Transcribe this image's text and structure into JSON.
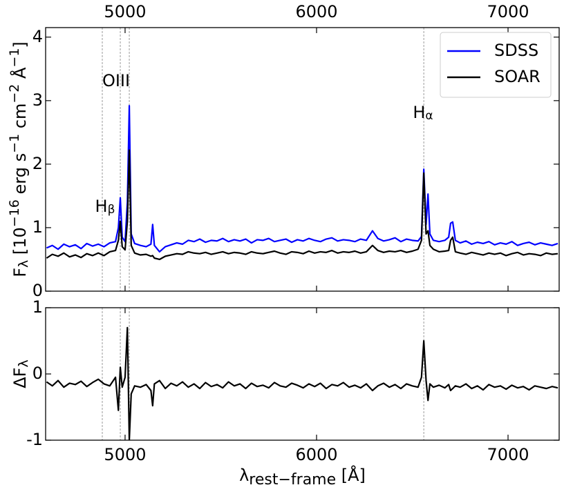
{
  "chart_data": [
    {
      "type": "line",
      "x": [
        4590,
        4620,
        4650,
        4680,
        4710,
        4740,
        4770,
        4800,
        4830,
        4860,
        4890,
        4920,
        4950,
        4965,
        4975,
        4985,
        5000,
        5012,
        5022,
        5032,
        5050,
        5080,
        5110,
        5135,
        5144,
        5153,
        5180,
        5210,
        5240,
        5270,
        5300,
        5330,
        5360,
        5390,
        5420,
        5450,
        5480,
        5510,
        5540,
        5570,
        5600,
        5630,
        5660,
        5690,
        5720,
        5750,
        5780,
        5810,
        5840,
        5870,
        5900,
        5930,
        5960,
        5990,
        6020,
        6050,
        6080,
        6110,
        6140,
        6170,
        6200,
        6230,
        6260,
        6292,
        6320,
        6350,
        6380,
        6410,
        6440,
        6470,
        6500,
        6530,
        6548,
        6560,
        6572,
        6582,
        6592,
        6610,
        6640,
        6670,
        6690,
        6700,
        6711,
        6725,
        6750,
        6780,
        6810,
        6840,
        6870,
        6900,
        6930,
        6960,
        6990,
        7020,
        7050,
        7080,
        7110,
        7140,
        7170,
        7200,
        7230,
        7260
      ],
      "series": [
        {
          "name": "SDSS",
          "color": "#0000ff",
          "values": [
            0.68,
            0.72,
            0.66,
            0.74,
            0.7,
            0.73,
            0.67,
            0.75,
            0.71,
            0.74,
            0.7,
            0.76,
            0.78,
            1.0,
            1.47,
            0.85,
            0.78,
            1.4,
            2.92,
            0.9,
            0.75,
            0.72,
            0.7,
            0.74,
            1.05,
            0.72,
            0.62,
            0.7,
            0.73,
            0.76,
            0.74,
            0.8,
            0.78,
            0.82,
            0.77,
            0.8,
            0.79,
            0.83,
            0.78,
            0.81,
            0.79,
            0.82,
            0.76,
            0.81,
            0.8,
            0.83,
            0.78,
            0.8,
            0.82,
            0.77,
            0.81,
            0.79,
            0.83,
            0.8,
            0.78,
            0.82,
            0.84,
            0.79,
            0.81,
            0.8,
            0.78,
            0.82,
            0.8,
            0.95,
            0.83,
            0.79,
            0.81,
            0.84,
            0.78,
            0.82,
            0.8,
            0.79,
            0.86,
            1.92,
            1.05,
            1.53,
            0.9,
            0.8,
            0.78,
            0.8,
            0.85,
            1.07,
            1.09,
            0.8,
            0.76,
            0.79,
            0.74,
            0.77,
            0.75,
            0.78,
            0.73,
            0.76,
            0.74,
            0.78,
            0.72,
            0.75,
            0.77,
            0.73,
            0.76,
            0.74,
            0.72,
            0.75
          ]
        },
        {
          "name": "SOAR",
          "color": "#000000",
          "values": [
            0.52,
            0.58,
            0.55,
            0.6,
            0.54,
            0.57,
            0.53,
            0.59,
            0.56,
            0.6,
            0.56,
            0.62,
            0.64,
            0.8,
            1.1,
            0.7,
            0.65,
            1.1,
            2.22,
            0.72,
            0.6,
            0.57,
            0.58,
            0.55,
            0.56,
            0.52,
            0.5,
            0.55,
            0.57,
            0.59,
            0.58,
            0.62,
            0.6,
            0.59,
            0.61,
            0.58,
            0.6,
            0.62,
            0.59,
            0.61,
            0.6,
            0.58,
            0.62,
            0.6,
            0.59,
            0.61,
            0.63,
            0.6,
            0.58,
            0.62,
            0.61,
            0.59,
            0.63,
            0.6,
            0.62,
            0.61,
            0.64,
            0.6,
            0.62,
            0.61,
            0.63,
            0.6,
            0.62,
            0.72,
            0.64,
            0.61,
            0.63,
            0.62,
            0.64,
            0.61,
            0.63,
            0.66,
            0.8,
            1.86,
            0.9,
            0.95,
            0.72,
            0.66,
            0.62,
            0.63,
            0.64,
            0.8,
            0.85,
            0.62,
            0.6,
            0.58,
            0.61,
            0.59,
            0.57,
            0.6,
            0.58,
            0.6,
            0.56,
            0.59,
            0.61,
            0.57,
            0.59,
            0.58,
            0.56,
            0.6,
            0.58,
            0.59
          ]
        }
      ],
      "xlim": [
        4585,
        7267
      ],
      "xticks": [
        5000,
        6000,
        7000
      ],
      "xtick_labels": "top",
      "ylim": [
        0,
        4.15
      ],
      "yticks": [
        0,
        1,
        2,
        3,
        4
      ],
      "ylabel": [
        {
          "text": "F"
        },
        {
          "text": "λ",
          "shift": "sub"
        },
        {
          "text": " [10"
        },
        {
          "text": "−16",
          "shift": "super"
        },
        {
          "text": " erg s"
        },
        {
          "text": "−1",
          "shift": "super"
        },
        {
          "text": " cm"
        },
        {
          "text": "−2",
          "shift": "super"
        },
        {
          "text": " Å"
        },
        {
          "text": "−1",
          "shift": "super"
        },
        {
          "text": "]"
        }
      ],
      "legend": "upper right",
      "vlines": [
        4881,
        4975,
        5022,
        6560
      ],
      "annotations": [
        [
          {
            "text": "H"
          },
          {
            "text": "β",
            "shift": "sub"
          }
        ],
        [
          {
            "text": "OIII"
          }
        ],
        [
          {
            "text": "H"
          },
          {
            "text": "α",
            "shift": "sub"
          }
        ]
      ]
    },
    {
      "type": "line",
      "x": [
        4590,
        4620,
        4650,
        4680,
        4710,
        4740,
        4770,
        4800,
        4830,
        4860,
        4890,
        4920,
        4950,
        4965,
        4975,
        4985,
        5000,
        5012,
        5022,
        5032,
        5050,
        5080,
        5110,
        5135,
        5144,
        5153,
        5180,
        5210,
        5240,
        5270,
        5300,
        5330,
        5360,
        5390,
        5420,
        5450,
        5480,
        5510,
        5540,
        5570,
        5600,
        5630,
        5660,
        5690,
        5720,
        5750,
        5780,
        5810,
        5840,
        5870,
        5900,
        5930,
        5960,
        5990,
        6020,
        6050,
        6080,
        6110,
        6140,
        6170,
        6200,
        6230,
        6260,
        6292,
        6320,
        6350,
        6380,
        6410,
        6440,
        6470,
        6500,
        6530,
        6548,
        6560,
        6572,
        6582,
        6592,
        6610,
        6640,
        6670,
        6690,
        6700,
        6711,
        6725,
        6750,
        6780,
        6810,
        6840,
        6870,
        6900,
        6930,
        6960,
        6990,
        7020,
        7050,
        7080,
        7110,
        7140,
        7170,
        7200,
        7230,
        7260
      ],
      "series": [
        {
          "color": "#000000",
          "values": [
            -0.12,
            -0.18,
            -0.1,
            -0.2,
            -0.14,
            -0.16,
            -0.11,
            -0.19,
            -0.13,
            -0.08,
            -0.15,
            -0.18,
            -0.05,
            -0.55,
            0.1,
            -0.2,
            -0.05,
            0.7,
            -1.0,
            -0.3,
            -0.18,
            -0.2,
            -0.16,
            -0.25,
            -0.48,
            -0.15,
            -0.1,
            -0.22,
            -0.14,
            -0.18,
            -0.12,
            -0.2,
            -0.15,
            -0.22,
            -0.13,
            -0.19,
            -0.16,
            -0.21,
            -0.12,
            -0.18,
            -0.15,
            -0.22,
            -0.14,
            -0.19,
            -0.17,
            -0.21,
            -0.13,
            -0.18,
            -0.2,
            -0.14,
            -0.17,
            -0.21,
            -0.15,
            -0.19,
            -0.14,
            -0.22,
            -0.16,
            -0.18,
            -0.13,
            -0.2,
            -0.17,
            -0.21,
            -0.15,
            -0.25,
            -0.18,
            -0.14,
            -0.2,
            -0.16,
            -0.22,
            -0.15,
            -0.18,
            -0.2,
            -0.05,
            0.5,
            -0.1,
            -0.4,
            -0.15,
            -0.2,
            -0.17,
            -0.21,
            -0.16,
            -0.25,
            -0.22,
            -0.18,
            -0.2,
            -0.15,
            -0.22,
            -0.18,
            -0.24,
            -0.16,
            -0.2,
            -0.18,
            -0.23,
            -0.17,
            -0.21,
            -0.19,
            -0.24,
            -0.18,
            -0.2,
            -0.22,
            -0.19,
            -0.21
          ]
        }
      ],
      "xlim": [
        4585,
        7267
      ],
      "xticks": [
        5000,
        6000,
        7000
      ],
      "xtick_labels": "bottom",
      "ylim": [
        -1,
        1
      ],
      "yticks": [
        -1,
        0,
        1
      ],
      "xlabel": [
        {
          "text": "λ"
        },
        {
          "text": "rest−frame",
          "shift": "sub"
        },
        {
          "text": " [Å]"
        }
      ],
      "ylabel": [
        {
          "text": "ΔF"
        },
        {
          "text": "λ",
          "shift": "sub"
        }
      ],
      "vlines": [
        4881,
        4975,
        5022,
        6560
      ]
    }
  ]
}
